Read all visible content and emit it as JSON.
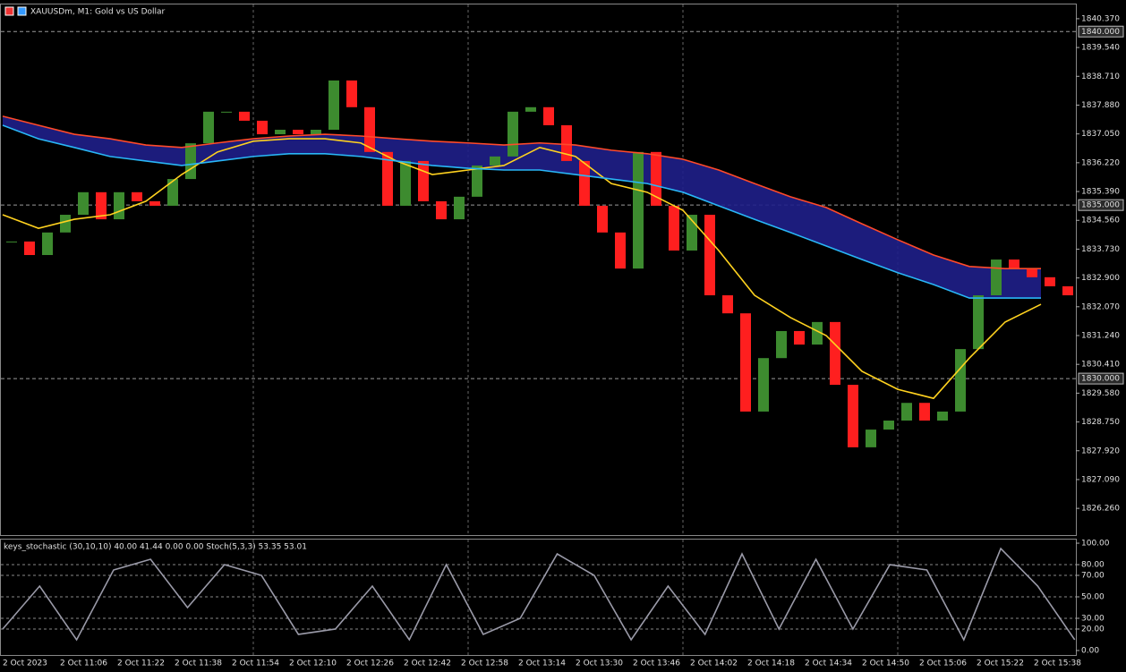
{
  "header": {
    "title": "XAUUSDm, M1:  Gold vs US Dollar",
    "indicator": "keys_stochastic (30,10,10) 40.00 41.44 0.00 0.00 Stoch(5,3,3) 53.35 53.01"
  },
  "time_axis": [
    "2 Oct 2023",
    "2 Oct 11:06",
    "2 Oct 11:22",
    "2 Oct 11:38",
    "2 Oct 11:54",
    "2 Oct 12:10",
    "2 Oct 12:26",
    "2 Oct 12:42",
    "2 Oct 12:58",
    "2 Oct 13:14",
    "2 Oct 13:30",
    "2 Oct 13:46",
    "2 Oct 14:02",
    "2 Oct 14:18",
    "2 Oct 14:34",
    "2 Oct 14:50",
    "2 Oct 15:06",
    "2 Oct 15:22",
    "2 Oct 15:38"
  ],
  "chart_data": [
    {
      "type": "candlestick",
      "up_color": "#3d8b2f",
      "down_color": "#ff1f1f",
      "ylim": [
        1825.49,
        1840.78
      ],
      "yticks": [
        {
          "value": 1840.37,
          "label": "1840.370"
        },
        {
          "value": 1839.54,
          "label": "1839.540"
        },
        {
          "value": 1838.71,
          "label": "1838.710"
        },
        {
          "value": 1837.88,
          "label": "1837.880"
        },
        {
          "value": 1837.05,
          "label": "1837.050"
        },
        {
          "value": 1836.22,
          "label": "1836.220"
        },
        {
          "value": 1835.39,
          "label": "1835.390"
        },
        {
          "value": 1834.56,
          "label": "1834.560"
        },
        {
          "value": 1833.73,
          "label": "1833.730"
        },
        {
          "value": 1832.9,
          "label": "1832.900"
        },
        {
          "value": 1832.07,
          "label": "1832.070"
        },
        {
          "value": 1831.24,
          "label": "1831.240"
        },
        {
          "value": 1830.41,
          "label": "1830.410"
        },
        {
          "value": 1829.58,
          "label": "1829.580"
        },
        {
          "value": 1828.75,
          "label": "1828.750"
        },
        {
          "value": 1827.92,
          "label": "1827.920"
        },
        {
          "value": 1827.09,
          "label": "1827.090"
        },
        {
          "value": 1826.26,
          "label": "1826.260"
        }
      ],
      "levels": [
        {
          "value": 1840,
          "label": "1840.000"
        },
        {
          "value": 1835,
          "label": "1835.000"
        },
        {
          "value": 1830,
          "label": "1830.000"
        }
      ],
      "series": [
        {
          "values": [
            1833.95,
            1833.56,
            1834.21,
            1834.72,
            1835.37,
            1834.59,
            1835.37,
            1835.11,
            1834.98,
            1835.75,
            1836.78,
            1837.69,
            1837.69,
            1837.43,
            1837.04,
            1837.17,
            1837.04,
            1837.17,
            1838.59,
            1837.82,
            1836.53,
            1834.98,
            1836.27,
            1835.11,
            1834.59,
            1835.24,
            1836.14,
            1836.4,
            1837.69,
            1837.82,
            1837.3,
            1836.27,
            1834.98,
            1834.21,
            1833.17,
            1836.53,
            1834.98,
            1833.69,
            1834.72,
            1832.4,
            1831.88,
            1829.05,
            1830.59,
            1831.37,
            1830.98,
            1831.63,
            1829.82,
            1828.02,
            1828.53,
            1828.79,
            1829.3,
            1828.79,
            1829.05,
            1830.85,
            1832.4,
            1833.43,
            1833.17,
            1832.92,
            1832.66,
            1832.4
          ]
        },
        {
          "color": "#ffd21f",
          "values": [
            1834.72,
            1834.33,
            1834.59,
            1834.72,
            1835.11,
            1835.88,
            1836.53,
            1836.84,
            1836.91,
            1836.91,
            1836.79,
            1836.27,
            1835.88,
            1836.01,
            1836.14,
            1836.66,
            1836.4,
            1835.62,
            1835.37,
            1834.85,
            1833.69,
            1832.4,
            1831.76,
            1831.24,
            1830.21,
            1829.69,
            1829.43,
            1830.59,
            1831.63,
            1832.14
          ]
        },
        {
          "color": "#ff4a2a",
          "values": [
            1837.56,
            1837.3,
            1837.04,
            1836.91,
            1836.73,
            1836.66,
            1836.79,
            1836.91,
            1836.99,
            1837.04,
            1836.99,
            1836.91,
            1836.84,
            1836.79,
            1836.73,
            1836.79,
            1836.73,
            1836.58,
            1836.48,
            1836.32,
            1836.01,
            1835.62,
            1835.24,
            1834.93,
            1834.46,
            1834.0,
            1833.56,
            1833.23,
            1833.17,
            1833.17
          ]
        },
        {
          "color": "#29b6f6",
          "fill": "#1f1f8a",
          "values": [
            1837.3,
            1836.91,
            1836.66,
            1836.4,
            1836.27,
            1836.14,
            1836.27,
            1836.4,
            1836.48,
            1836.48,
            1836.4,
            1836.27,
            1836.14,
            1836.06,
            1836.01,
            1836.01,
            1835.88,
            1835.75,
            1835.62,
            1835.37,
            1834.98,
            1834.59,
            1834.21,
            1833.82,
            1833.43,
            1833.05,
            1832.71,
            1832.32,
            1832.32,
            1832.32
          ]
        }
      ]
    },
    {
      "type": "line",
      "ylim": [
        -4.2,
        104.2
      ],
      "yticks": [
        {
          "value": 100,
          "label": "100.00"
        },
        {
          "value": 80,
          "label": "80.00"
        },
        {
          "value": 70,
          "label": "70.00"
        },
        {
          "value": 50,
          "label": "50.00"
        },
        {
          "value": 30,
          "label": "30.00"
        },
        {
          "value": 20,
          "label": "20.00"
        },
        {
          "value": 0,
          "label": "0.00"
        }
      ],
      "series": [
        {
          "color": "#9a9aa8",
          "values": [
            20,
            60,
            10,
            75,
            85,
            40,
            80,
            70,
            15,
            20,
            60,
            10,
            80,
            15,
            30,
            90,
            70,
            10,
            60,
            15,
            90,
            20,
            85,
            20,
            80,
            75,
            10,
            95,
            60,
            10
          ]
        }
      ]
    }
  ]
}
